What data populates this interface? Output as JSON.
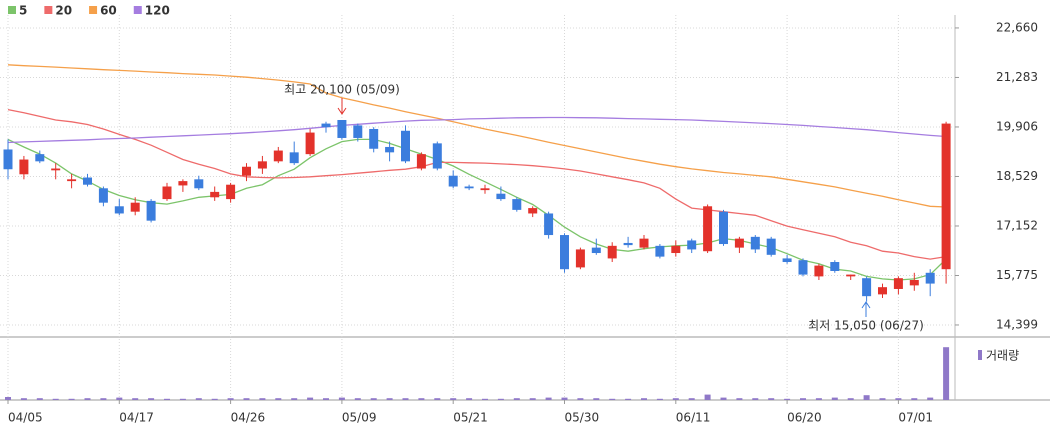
{
  "chart_data": {
    "type": "candlestick",
    "categories": [
      "04/05",
      null,
      null,
      null,
      null,
      null,
      null,
      "04/17",
      null,
      null,
      null,
      null,
      null,
      null,
      "04/26",
      null,
      null,
      null,
      null,
      null,
      null,
      "05/09",
      null,
      null,
      null,
      null,
      null,
      null,
      "05/21",
      null,
      null,
      null,
      null,
      null,
      null,
      "05/30",
      null,
      null,
      null,
      null,
      null,
      null,
      "06/11",
      null,
      null,
      null,
      null,
      null,
      null,
      "06/20",
      null,
      null,
      null,
      null,
      null,
      null,
      "07/01",
      null,
      null,
      null
    ],
    "open": [
      19280,
      18590,
      19150,
      18700,
      18400,
      18500,
      18200,
      17700,
      17550,
      17850,
      17900,
      18280,
      18450,
      17950,
      17900,
      18550,
      18750,
      18950,
      19200,
      19150,
      20000,
      20100,
      19950,
      19850,
      19350,
      19800,
      18750,
      19450,
      18550,
      18250,
      18150,
      18050,
      17900,
      17500,
      17500,
      16900,
      16000,
      16550,
      16250,
      16680,
      16550,
      16600,
      16400,
      16750,
      16450,
      17550,
      16550,
      16850,
      16800,
      16250,
      16200,
      15750,
      16150,
      15750,
      15700,
      15250,
      15400,
      15500,
      15850,
      15950
    ],
    "high": [
      19560,
      19100,
      19250,
      18900,
      18600,
      18600,
      18250,
      17900,
      17950,
      17900,
      18350,
      18450,
      18550,
      18250,
      18350,
      18900,
      19100,
      19350,
      19500,
      19850,
      20050,
      20100,
      20000,
      19900,
      19500,
      19950,
      19200,
      19500,
      18700,
      18300,
      18300,
      18250,
      17950,
      17700,
      17550,
      16950,
      16550,
      16800,
      16700,
      16850,
      16900,
      16650,
      16750,
      16800,
      17750,
      17600,
      16850,
      16900,
      16850,
      16350,
      16250,
      16100,
      16200,
      15800,
      15750,
      15550,
      15750,
      15850,
      15950,
      20050
    ],
    "low": [
      18450,
      18450,
      18900,
      18450,
      18200,
      18250,
      17700,
      17450,
      17450,
      17250,
      17850,
      18100,
      18150,
      17850,
      17800,
      18400,
      18600,
      18900,
      18850,
      19100,
      19750,
      19550,
      19500,
      19200,
      18950,
      18900,
      18700,
      18700,
      18200,
      18150,
      18050,
      17850,
      17550,
      17400,
      16800,
      15850,
      15950,
      16350,
      16150,
      16550,
      16500,
      16250,
      16300,
      16400,
      16400,
      16600,
      16400,
      16400,
      16300,
      16100,
      15750,
      15650,
      15850,
      15650,
      15050,
      15150,
      15250,
      15350,
      15200,
      15550
    ],
    "close": [
      18730,
      19000,
      18950,
      18750,
      18450,
      18300,
      17800,
      17500,
      17800,
      17300,
      18250,
      18400,
      18200,
      18100,
      18300,
      18800,
      18950,
      19250,
      18900,
      19750,
      19900,
      19600,
      19600,
      19300,
      19200,
      18950,
      19150,
      18750,
      18250,
      18200,
      18200,
      17900,
      17600,
      17650,
      16900,
      15950,
      16500,
      16400,
      16600,
      16620,
      16800,
      16300,
      16600,
      16500,
      17700,
      16650,
      16800,
      16500,
      16350,
      16150,
      15800,
      16050,
      15900,
      15800,
      15200,
      15450,
      15700,
      15650,
      15550,
      20000
    ],
    "up_color": "#e3322b",
    "down_color": "#3b7ddd",
    "ylim": [
      14120,
      23020
    ],
    "yticks": [
      {
        "value": 22660,
        "label": "22,660"
      },
      {
        "value": 21283,
        "label": "21,283"
      },
      {
        "value": 19906,
        "label": "19,906"
      },
      {
        "value": 18529,
        "label": "18,529"
      },
      {
        "value": 17152,
        "label": "17,152"
      },
      {
        "value": 15775,
        "label": "15,775"
      },
      {
        "value": 14399,
        "label": "14,399"
      }
    ],
    "grid": true,
    "series": [
      {
        "name": "5",
        "color": "#7cc46a",
        "values": [
          19560,
          19350,
          19150,
          18900,
          18600,
          18400,
          18170,
          18000,
          17880,
          17800,
          17760,
          17850,
          17950,
          17990,
          18030,
          18200,
          18300,
          18550,
          18730,
          19050,
          19300,
          19500,
          19560,
          19560,
          19450,
          19300,
          19150,
          19000,
          18820,
          18590,
          18380,
          18170,
          17950,
          17750,
          17450,
          17120,
          16850,
          16650,
          16500,
          16450,
          16520,
          16570,
          16600,
          16620,
          16680,
          16800,
          16750,
          16650,
          16550,
          16380,
          16200,
          16100,
          15950,
          15900,
          15750,
          15680,
          15650,
          15680,
          15800,
          16230
        ]
      },
      {
        "name": "20",
        "color": "#ee6b6b",
        "values": [
          20390,
          20300,
          20200,
          20100,
          20050,
          19975,
          19850,
          19700,
          19560,
          19400,
          19200,
          19000,
          18870,
          18750,
          18600,
          18520,
          18500,
          18490,
          18500,
          18520,
          18550,
          18580,
          18620,
          18660,
          18700,
          18730,
          18800,
          18920,
          18920,
          18910,
          18900,
          18880,
          18860,
          18830,
          18790,
          18740,
          18680,
          18600,
          18520,
          18440,
          18350,
          18200,
          17900,
          17650,
          17600,
          17550,
          17500,
          17450,
          17300,
          17150,
          17050,
          16950,
          16850,
          16700,
          16600,
          16450,
          16400,
          16300,
          16230,
          16300
        ]
      },
      {
        "name": "60",
        "color": "#f5a04a",
        "values": [
          21635,
          21610,
          21590,
          21570,
          21545,
          21525,
          21500,
          21480,
          21460,
          21435,
          21415,
          21390,
          21370,
          21350,
          21320,
          21290,
          21250,
          21210,
          21160,
          21100,
          20850,
          20720,
          20620,
          20520,
          20430,
          20330,
          20240,
          20150,
          20050,
          19950,
          19850,
          19760,
          19670,
          19580,
          19480,
          19390,
          19300,
          19210,
          19120,
          19030,
          18950,
          18870,
          18800,
          18740,
          18690,
          18640,
          18600,
          18560,
          18520,
          18450,
          18380,
          18310,
          18240,
          18150,
          18060,
          17980,
          17880,
          17790,
          17700,
          17680
        ]
      },
      {
        "name": "120",
        "color": "#a57de0",
        "values": [
          19475,
          19490,
          19505,
          19520,
          19535,
          19550,
          19570,
          19585,
          19600,
          19620,
          19640,
          19660,
          19680,
          19700,
          19720,
          19745,
          19770,
          19800,
          19830,
          19870,
          19910,
          19950,
          19980,
          20010,
          20040,
          20070,
          20090,
          20100,
          20110,
          20130,
          20140,
          20150,
          20160,
          20165,
          20170,
          20170,
          20165,
          20160,
          20150,
          20140,
          20130,
          20120,
          20110,
          20100,
          20080,
          20060,
          20040,
          20020,
          20000,
          19975,
          19950,
          19920,
          19890,
          19860,
          19830,
          19790,
          19750,
          19710,
          19670,
          19640
        ]
      }
    ],
    "volume": {
      "name": "거래량",
      "color": "#8f78c8",
      "ylim": [
        0,
        100
      ],
      "values": [
        5,
        3,
        3,
        2,
        2,
        3,
        3,
        4,
        3,
        3,
        2,
        2,
        3,
        2,
        3,
        3,
        3,
        3,
        3,
        4,
        3,
        4,
        3,
        3,
        3,
        3,
        3,
        3,
        3,
        3,
        2,
        2,
        3,
        3,
        4,
        4,
        3,
        3,
        2,
        2,
        3,
        2,
        3,
        3,
        9,
        4,
        3,
        3,
        3,
        2,
        3,
        3,
        4,
        3,
        8,
        3,
        3,
        3,
        4,
        88
      ]
    },
    "annotations": [
      {
        "text": "최고 20,100 (05/09)",
        "color": "#e3322b"
      },
      {
        "text": "최저 15,050 (06/27)",
        "color": "#3b7ddd"
      }
    ]
  }
}
